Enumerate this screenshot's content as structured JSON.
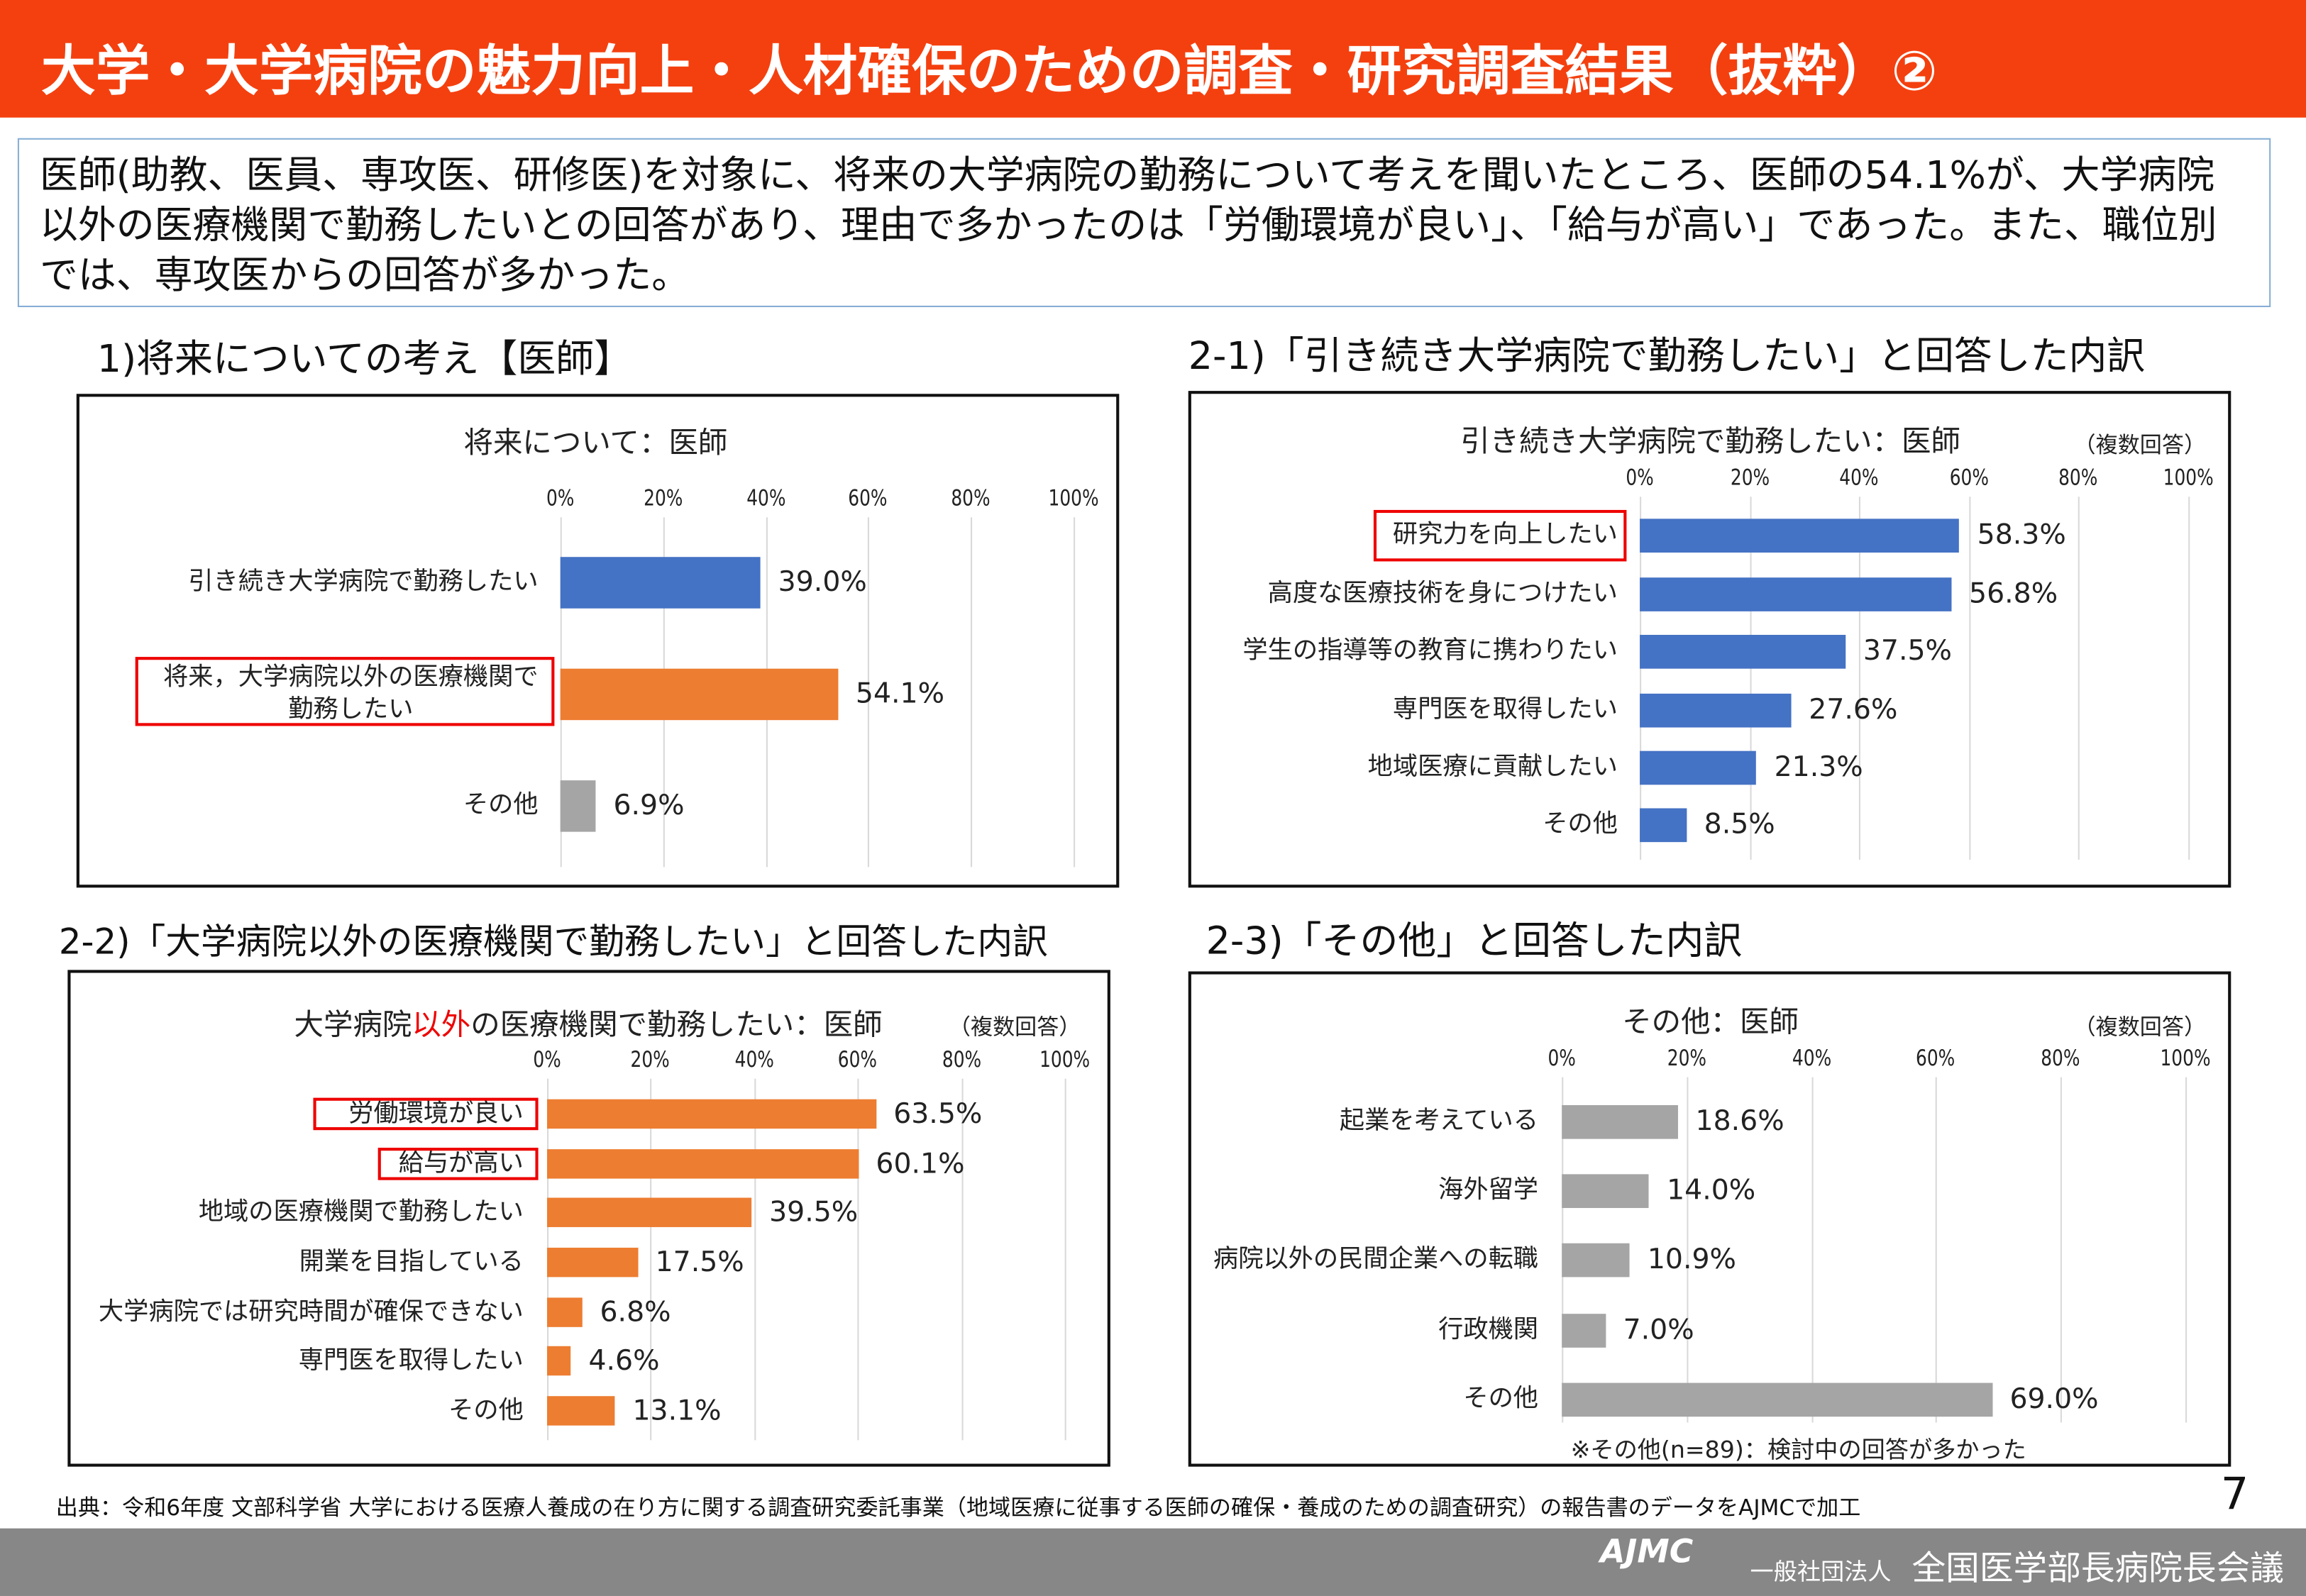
{
  "header": {
    "title": "大学・大学病院の魅力向上・人材確保のための調査・研究調査結果（抜粋）②"
  },
  "description": "医師(助教、医員、専攻医、研修医)を対象に、将来の大学病院の勤務について考えを聞いたところ、医師の54.1%が、大学病院以外の医療機関で勤務したいとの回答があり、理由で多かったのは「労働環境が良い」、「給与が高い」であった。また、職位別では、専攻医からの回答が多かった。",
  "colors": {
    "header": "#f4400f",
    "blue": "#4472c4",
    "orange": "#ed7d31",
    "gray": "#a5a5a5",
    "highlight": "#ee0000"
  },
  "chart_data": [
    {
      "type": "bar",
      "orientation": "horizontal",
      "section_title": "1)将来についての考え【医師】",
      "title": "将来について：医師",
      "xlim": [
        0,
        100
      ],
      "ticks": [
        "0%",
        "20%",
        "40%",
        "60%",
        "80%",
        "100%"
      ],
      "categories": [
        "引き続き大学病院で勤務したい",
        "将来，大学病院以外の医療機関で\n勤務したい",
        "その他"
      ],
      "values": [
        39.0,
        54.1,
        6.9
      ],
      "labels": [
        "39.0%",
        "54.1%",
        "6.9%"
      ],
      "bar_colors": [
        "#4472c4",
        "#ed7d31",
        "#a5a5a5"
      ],
      "highlighted": [
        false,
        true,
        false
      ]
    },
    {
      "type": "bar",
      "orientation": "horizontal",
      "section_title": "2-1)「引き続き大学病院で勤務したい」と回答した内訳",
      "title": "引き続き大学病院で勤務したい：医師",
      "note_multi": "（複数回答）",
      "xlim": [
        0,
        100
      ],
      "ticks": [
        "0%",
        "20%",
        "40%",
        "60%",
        "80%",
        "100%"
      ],
      "categories": [
        "研究力を向上したい",
        "高度な医療技術を身につけたい",
        "学生の指導等の教育に携わりたい",
        "専門医を取得したい",
        "地域医療に貢献したい",
        "その他"
      ],
      "values": [
        58.3,
        56.8,
        37.5,
        27.6,
        21.3,
        8.5
      ],
      "labels": [
        "58.3%",
        "56.8%",
        "37.5%",
        "27.6%",
        "21.3%",
        "8.5%"
      ],
      "bar_colors": [
        "#4472c4"
      ],
      "highlighted": [
        true,
        false,
        false,
        false,
        false,
        false
      ]
    },
    {
      "type": "bar",
      "orientation": "horizontal",
      "section_title": "2-2)「大学病院以外の医療機関で勤務したい」と回答した内訳",
      "title_parts": [
        "大学病院",
        "以外",
        "の医療機関で勤務したい：医師"
      ],
      "note_multi": "（複数回答）",
      "xlim": [
        0,
        100
      ],
      "ticks": [
        "0%",
        "20%",
        "40%",
        "60%",
        "80%",
        "100%"
      ],
      "categories": [
        "労働環境が良い",
        "給与が高い",
        "地域の医療機関で勤務したい",
        "開業を目指している",
        "大学病院では研究時間が確保できない",
        "専門医を取得したい",
        "その他"
      ],
      "values": [
        63.5,
        60.1,
        39.5,
        17.5,
        6.8,
        4.6,
        13.1
      ],
      "labels": [
        "63.5%",
        "60.1%",
        "39.5%",
        "17.5%",
        "6.8%",
        "4.6%",
        "13.1%"
      ],
      "bar_colors": [
        "#ed7d31"
      ],
      "highlighted": [
        true,
        true,
        false,
        false,
        false,
        false,
        false
      ]
    },
    {
      "type": "bar",
      "orientation": "horizontal",
      "section_title": "2-3)「その他」と回答した内訳",
      "title": "その他：医師",
      "note_multi": "（複数回答）",
      "xlim": [
        0,
        100
      ],
      "ticks": [
        "0%",
        "20%",
        "40%",
        "60%",
        "80%",
        "100%"
      ],
      "categories": [
        "起業を考えている",
        "海外留学",
        "病院以外の民間企業への転職",
        "行政機関",
        "その他"
      ],
      "values": [
        18.6,
        14.0,
        10.9,
        7.0,
        69.0
      ],
      "labels": [
        "18.6%",
        "14.0%",
        "10.9%",
        "7.0%",
        "69.0%"
      ],
      "bar_colors": [
        "#a5a5a5"
      ],
      "highlighted": [
        false,
        false,
        false,
        false,
        false
      ],
      "footnote": "※その他(n=89)：検討中の回答が多かった"
    }
  ],
  "footer": {
    "source": "出典：令和6年度 文部科学省 大学における医療人養成の在り方に関する調査研究委託事業（地域医療に従事する医師の確保・養成のための調査研究）の報告書のデータをAJMCで加工",
    "page_number": "7",
    "logo": "AJMC",
    "org_prefix": "一般社団法人",
    "org_name": "全国医学部長病院長会議"
  }
}
